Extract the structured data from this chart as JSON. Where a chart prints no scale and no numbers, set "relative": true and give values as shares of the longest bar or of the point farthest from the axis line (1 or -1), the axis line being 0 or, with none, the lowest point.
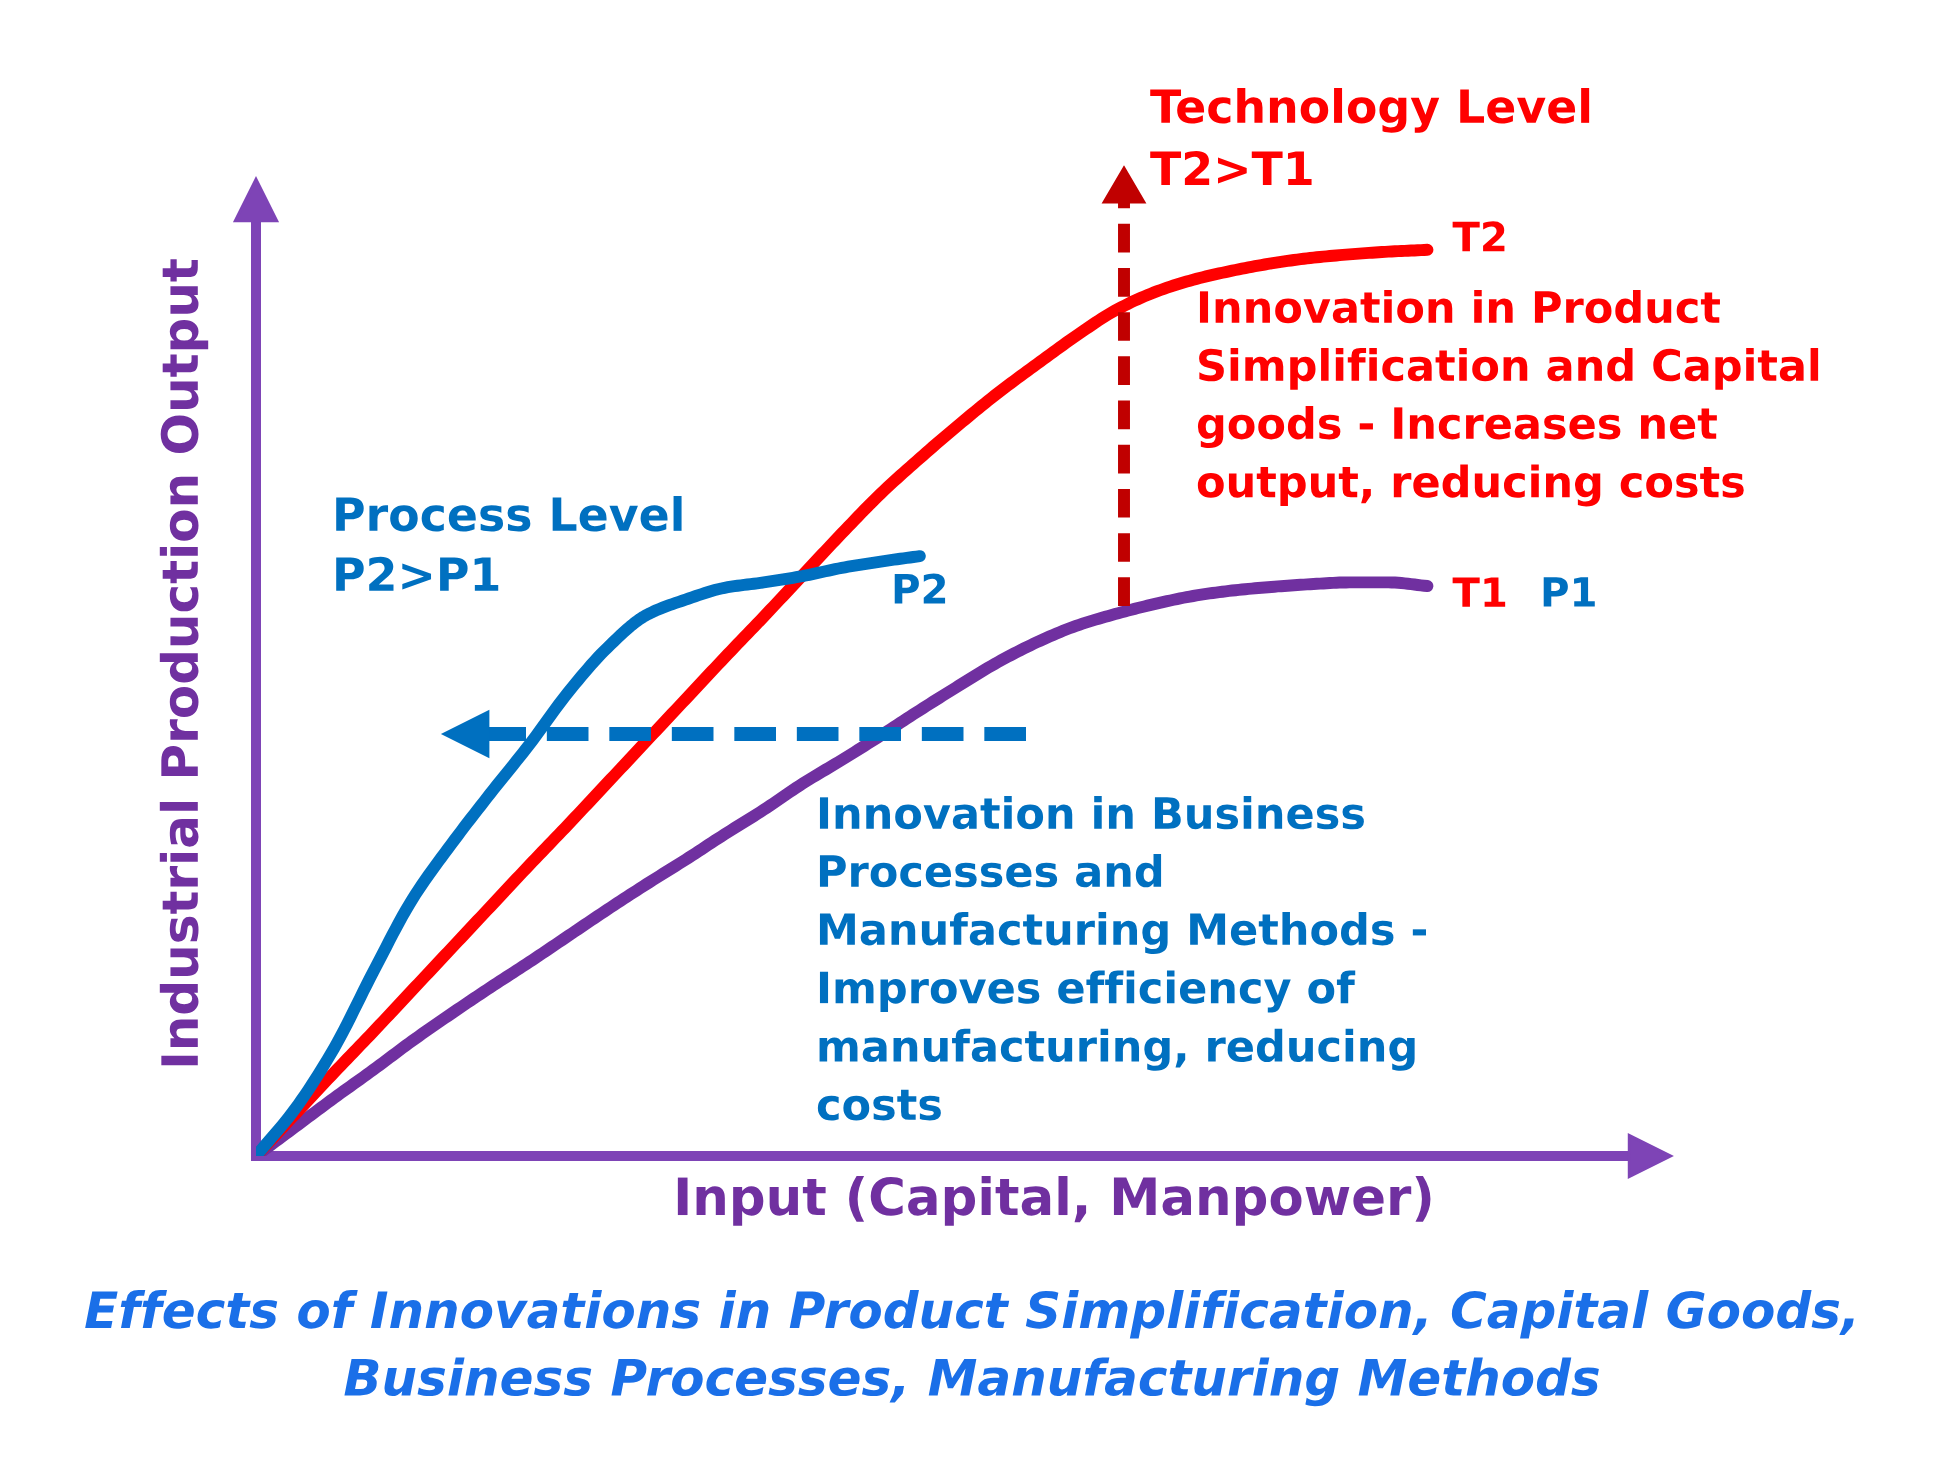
{
  "chart_data": {
    "type": "line",
    "title": "Effects of Innovations in Product Simplification, Capital Goods,\nBusiness Processes, Manufacturing Methods",
    "xlabel": "Input (Capital, Manpower)",
    "ylabel": "Industrial Production Output",
    "annotations": [
      "Technology Level\nT2>T1",
      "Innovation in Product\nSimplification and Capital\ngoods - Increases net\noutput, reducing costs",
      "Process Level\nP2>P1",
      "Innovation in Business\nProcesses and\nManufacturing Methods -\nImproves efficiency of\nmanufacturing, reducing\ncosts",
      "P1"
    ],
    "relative": true,
    "categories": [
      null,
      null,
      null,
      null,
      null,
      null,
      null,
      null,
      null,
      null,
      null,
      null,
      null,
      null,
      null,
      null,
      null,
      null,
      null,
      null,
      null,
      null,
      null,
      null,
      null,
      null,
      null,
      null,
      null,
      null,
      null
    ],
    "series": [
      {
        "name": "T1",
        "color": "#7030a0",
        "values": [
          0,
          0.032,
          0.064,
          0.095,
          0.127,
          0.157,
          0.186,
          0.214,
          0.243,
          0.272,
          0.3,
          0.327,
          0.355,
          0.382,
          0.411,
          0.437,
          0.464,
          0.492,
          0.519,
          0.545,
          0.567,
          0.585,
          0.598,
          0.609,
          0.618,
          0.624,
          0.628,
          0.631,
          0.633,
          0.633,
          0.629
        ]
      },
      {
        "name": "T2",
        "color": "#ff0000",
        "values": [
          0,
          0.046,
          0.092,
          0.137,
          0.183,
          0.229,
          0.275,
          0.321,
          0.366,
          0.412,
          0.458,
          0.504,
          0.55,
          0.595,
          0.641,
          0.687,
          0.731,
          0.77,
          0.807,
          0.842,
          0.874,
          0.905,
          0.933,
          0.953,
          0.967,
          0.977,
          0.985,
          0.991,
          0.995,
          0.998,
          1
        ]
      },
      {
        "name": "P2",
        "color": "#0070c0",
        "values": [
          0,
          0.052,
          0.119,
          0.203,
          0.283,
          0.344,
          0.4,
          0.454,
          0.512,
          0.561,
          0.597,
          0.614,
          0.627,
          0.633,
          0.64,
          0.649,
          0.656,
          0.662,
          null,
          null,
          null,
          null,
          null,
          null,
          null,
          null,
          null,
          null,
          null,
          null,
          null
        ]
      }
    ]
  }
}
